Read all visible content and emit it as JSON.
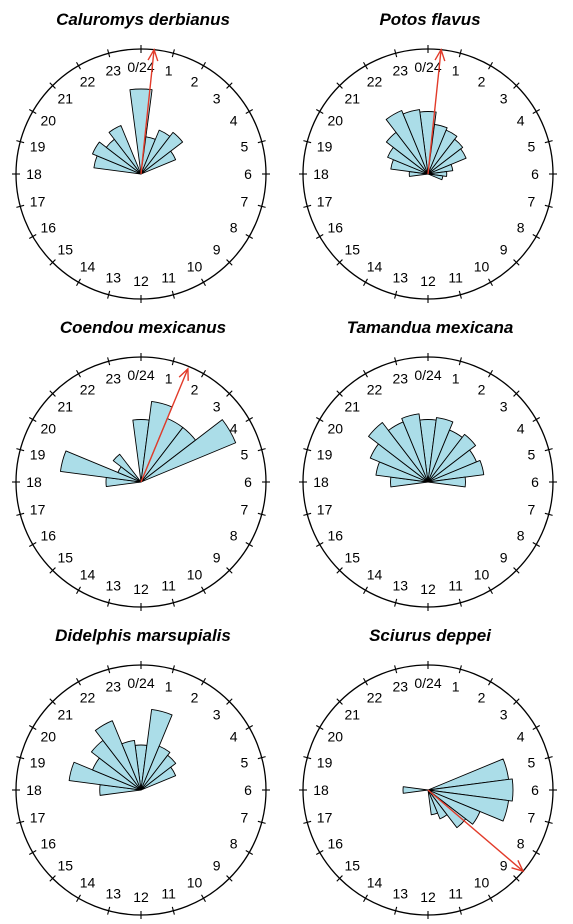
{
  "chart_data": [
    {
      "type": "rose",
      "title": "Caluromys derbianus",
      "hour_labels": [
        "0/24",
        "1",
        "2",
        "3",
        "4",
        "5",
        "6",
        "7",
        "8",
        "9",
        "10",
        "11",
        "12",
        "13",
        "14",
        "15",
        "16",
        "17",
        "18",
        "19",
        "20",
        "21",
        "22",
        "23"
      ],
      "hours": [
        0,
        1,
        2,
        3,
        4,
        5,
        6,
        7,
        8,
        9,
        10,
        11,
        12,
        13,
        14,
        15,
        16,
        17,
        18,
        19,
        20,
        21,
        22,
        23
      ],
      "values": [
        0.68,
        0.3,
        0.38,
        0.42,
        0.3,
        0,
        0,
        0,
        0,
        0,
        0,
        0,
        0,
        0,
        0,
        0,
        0,
        0,
        0,
        0.38,
        0.42,
        0.35,
        0.42,
        0
      ],
      "mean_hour": 0.4,
      "mean_vector_length": 1.0,
      "fill_color": "#abdde8",
      "mean_vector_color": "#e23b2a"
    },
    {
      "type": "rose",
      "title": "Potos flavus",
      "hour_labels": [
        "0/24",
        "1",
        "2",
        "3",
        "4",
        "5",
        "6",
        "7",
        "8",
        "9",
        "10",
        "11",
        "12",
        "13",
        "14",
        "15",
        "16",
        "17",
        "18",
        "19",
        "20",
        "21",
        "22",
        "23"
      ],
      "hours": [
        0,
        1,
        2,
        3,
        4,
        5,
        6,
        7,
        8,
        9,
        10,
        11,
        12,
        13,
        14,
        15,
        16,
        17,
        18,
        19,
        20,
        21,
        22,
        23
      ],
      "values": [
        0.5,
        0.4,
        0.38,
        0.35,
        0.33,
        0.2,
        0.15,
        0.12,
        0,
        0,
        0,
        0,
        0,
        0,
        0,
        0,
        0,
        0,
        0.15,
        0.3,
        0.35,
        0.42,
        0.55,
        0.52
      ],
      "mean_hour": 0.4,
      "mean_vector_length": 1.0,
      "fill_color": "#abdde8",
      "mean_vector_color": "#e23b2a"
    },
    {
      "type": "rose",
      "title": "Coendou mexicanus",
      "hour_labels": [
        "0/24",
        "1",
        "2",
        "3",
        "4",
        "5",
        "6",
        "7",
        "8",
        "9",
        "10",
        "11",
        "12",
        "13",
        "14",
        "15",
        "16",
        "17",
        "18",
        "19",
        "20",
        "21",
        "22",
        "23"
      ],
      "hours": [
        0,
        1,
        2,
        3,
        4,
        5,
        6,
        7,
        8,
        9,
        10,
        11,
        12,
        13,
        14,
        15,
        16,
        17,
        18,
        19,
        20,
        21,
        22,
        23
      ],
      "values": [
        0.5,
        0.65,
        0.55,
        0.55,
        0.82,
        0,
        0,
        0,
        0,
        0,
        0,
        0,
        0,
        0,
        0,
        0,
        0,
        0,
        0.28,
        0.65,
        0.2,
        0.28,
        0,
        0
      ],
      "mean_hour": 1.5,
      "mean_vector_length": 0.98,
      "fill_color": "#abdde8",
      "mean_vector_color": "#e23b2a"
    },
    {
      "type": "rose",
      "title": "Tamandua mexicana",
      "hour_labels": [
        "0/24",
        "1",
        "2",
        "3",
        "4",
        "5",
        "6",
        "7",
        "8",
        "9",
        "10",
        "11",
        "12",
        "13",
        "14",
        "15",
        "16",
        "17",
        "18",
        "19",
        "20",
        "21",
        "22",
        "23"
      ],
      "hours": [
        0,
        1,
        2,
        3,
        4,
        5,
        6,
        7,
        8,
        9,
        10,
        11,
        12,
        13,
        14,
        15,
        16,
        17,
        18,
        19,
        20,
        21,
        22,
        23
      ],
      "values": [
        0.5,
        0.52,
        0.45,
        0.48,
        0.42,
        0.45,
        0.3,
        0,
        0,
        0,
        0,
        0,
        0,
        0,
        0,
        0,
        0,
        0,
        0.3,
        0.42,
        0.5,
        0.6,
        0.52,
        0.55
      ],
      "fill_color": "#abdde8"
    },
    {
      "type": "rose",
      "title": "Didelphis marsupialis",
      "hour_labels": [
        "0/24",
        "1",
        "2",
        "3",
        "4",
        "5",
        "6",
        "7",
        "8",
        "9",
        "10",
        "11",
        "12",
        "13",
        "14",
        "15",
        "16",
        "17",
        "18",
        "19",
        "20",
        "21",
        "22",
        "23"
      ],
      "hours": [
        0,
        1,
        2,
        3,
        4,
        5,
        6,
        7,
        8,
        9,
        10,
        11,
        12,
        13,
        14,
        15,
        16,
        17,
        18,
        19,
        20,
        21,
        22,
        23
      ],
      "values": [
        0.36,
        0.65,
        0.38,
        0.35,
        0.3,
        0,
        0,
        0,
        0,
        0,
        0,
        0,
        0,
        0,
        0,
        0,
        0,
        0,
        0.33,
        0.58,
        0.42,
        0.5,
        0.6,
        0.4
      ],
      "fill_color": "#abdde8"
    },
    {
      "type": "rose",
      "title": "Sciurus deppei",
      "hour_labels": [
        "0/24",
        "1",
        "2",
        "3",
        "4",
        "5",
        "6",
        "7",
        "8",
        "9",
        "10",
        "11",
        "12",
        "13",
        "14",
        "15",
        "16",
        "17",
        "18",
        "19",
        "20",
        "21",
        "22",
        "23"
      ],
      "hours": [
        0,
        1,
        2,
        3,
        4,
        5,
        6,
        7,
        8,
        9,
        10,
        11,
        12,
        13,
        14,
        15,
        16,
        17,
        18,
        19,
        20,
        21,
        22,
        23
      ],
      "values": [
        0,
        0,
        0,
        0,
        0,
        0.65,
        0.68,
        0.65,
        0.45,
        0.38,
        0.25,
        0.2,
        0,
        0,
        0,
        0,
        0,
        0,
        0.2,
        0,
        0,
        0,
        0,
        0
      ],
      "mean_hour": 8.7,
      "mean_vector_length": 1.0,
      "fill_color": "#abdde8",
      "mean_vector_color": "#e23b2a"
    }
  ]
}
